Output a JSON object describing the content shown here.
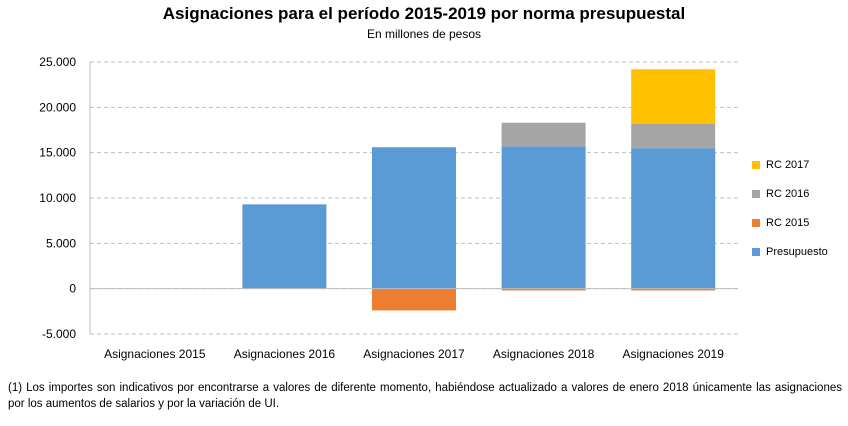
{
  "chart_data": {
    "type": "bar",
    "stacked": true,
    "title": "Asignaciones  para el período 2015-2019 por norma presupuestal",
    "subtitle": "En millones de pesos",
    "categories": [
      "Asignaciones 2015",
      "Asignaciones 2016",
      "Asignaciones 2017",
      "Asignaciones 2018",
      "Asignaciones 2019"
    ],
    "series": [
      {
        "name": "Presupuesto",
        "color": "#5B9BD5",
        "values": [
          0,
          9300,
          15600,
          15700,
          15500
        ]
      },
      {
        "name": "RC 2015",
        "color": "#ED7D31",
        "values": [
          0,
          0,
          -2400,
          -200,
          -200
        ]
      },
      {
        "name": "RC 2016",
        "color": "#A5A5A5",
        "values": [
          0,
          0,
          0,
          2600,
          2700
        ]
      },
      {
        "name": "RC 2017",
        "color": "#FFC000",
        "values": [
          0,
          0,
          0,
          0,
          6000
        ]
      }
    ],
    "legend_order": [
      "RC 2017",
      "RC 2016",
      "RC 2015",
      "Presupuesto"
    ],
    "ylim": [
      -5000,
      25000
    ],
    "yticks": [
      -5000,
      0,
      5000,
      10000,
      15000,
      20000,
      25000
    ],
    "ytick_labels": [
      "-5.000",
      "0",
      "5.000",
      "10.000",
      "15.000",
      "20.000",
      "25.000"
    ],
    "grid": true,
    "legend_position": "right"
  },
  "footnote": "(1) Los importes son indicativos por encontrarse a valores de diferente momento, habiéndose actualizado a valores de enero 2018 únicamente las asignaciones por los aumentos de salarios y por la variación de UI."
}
